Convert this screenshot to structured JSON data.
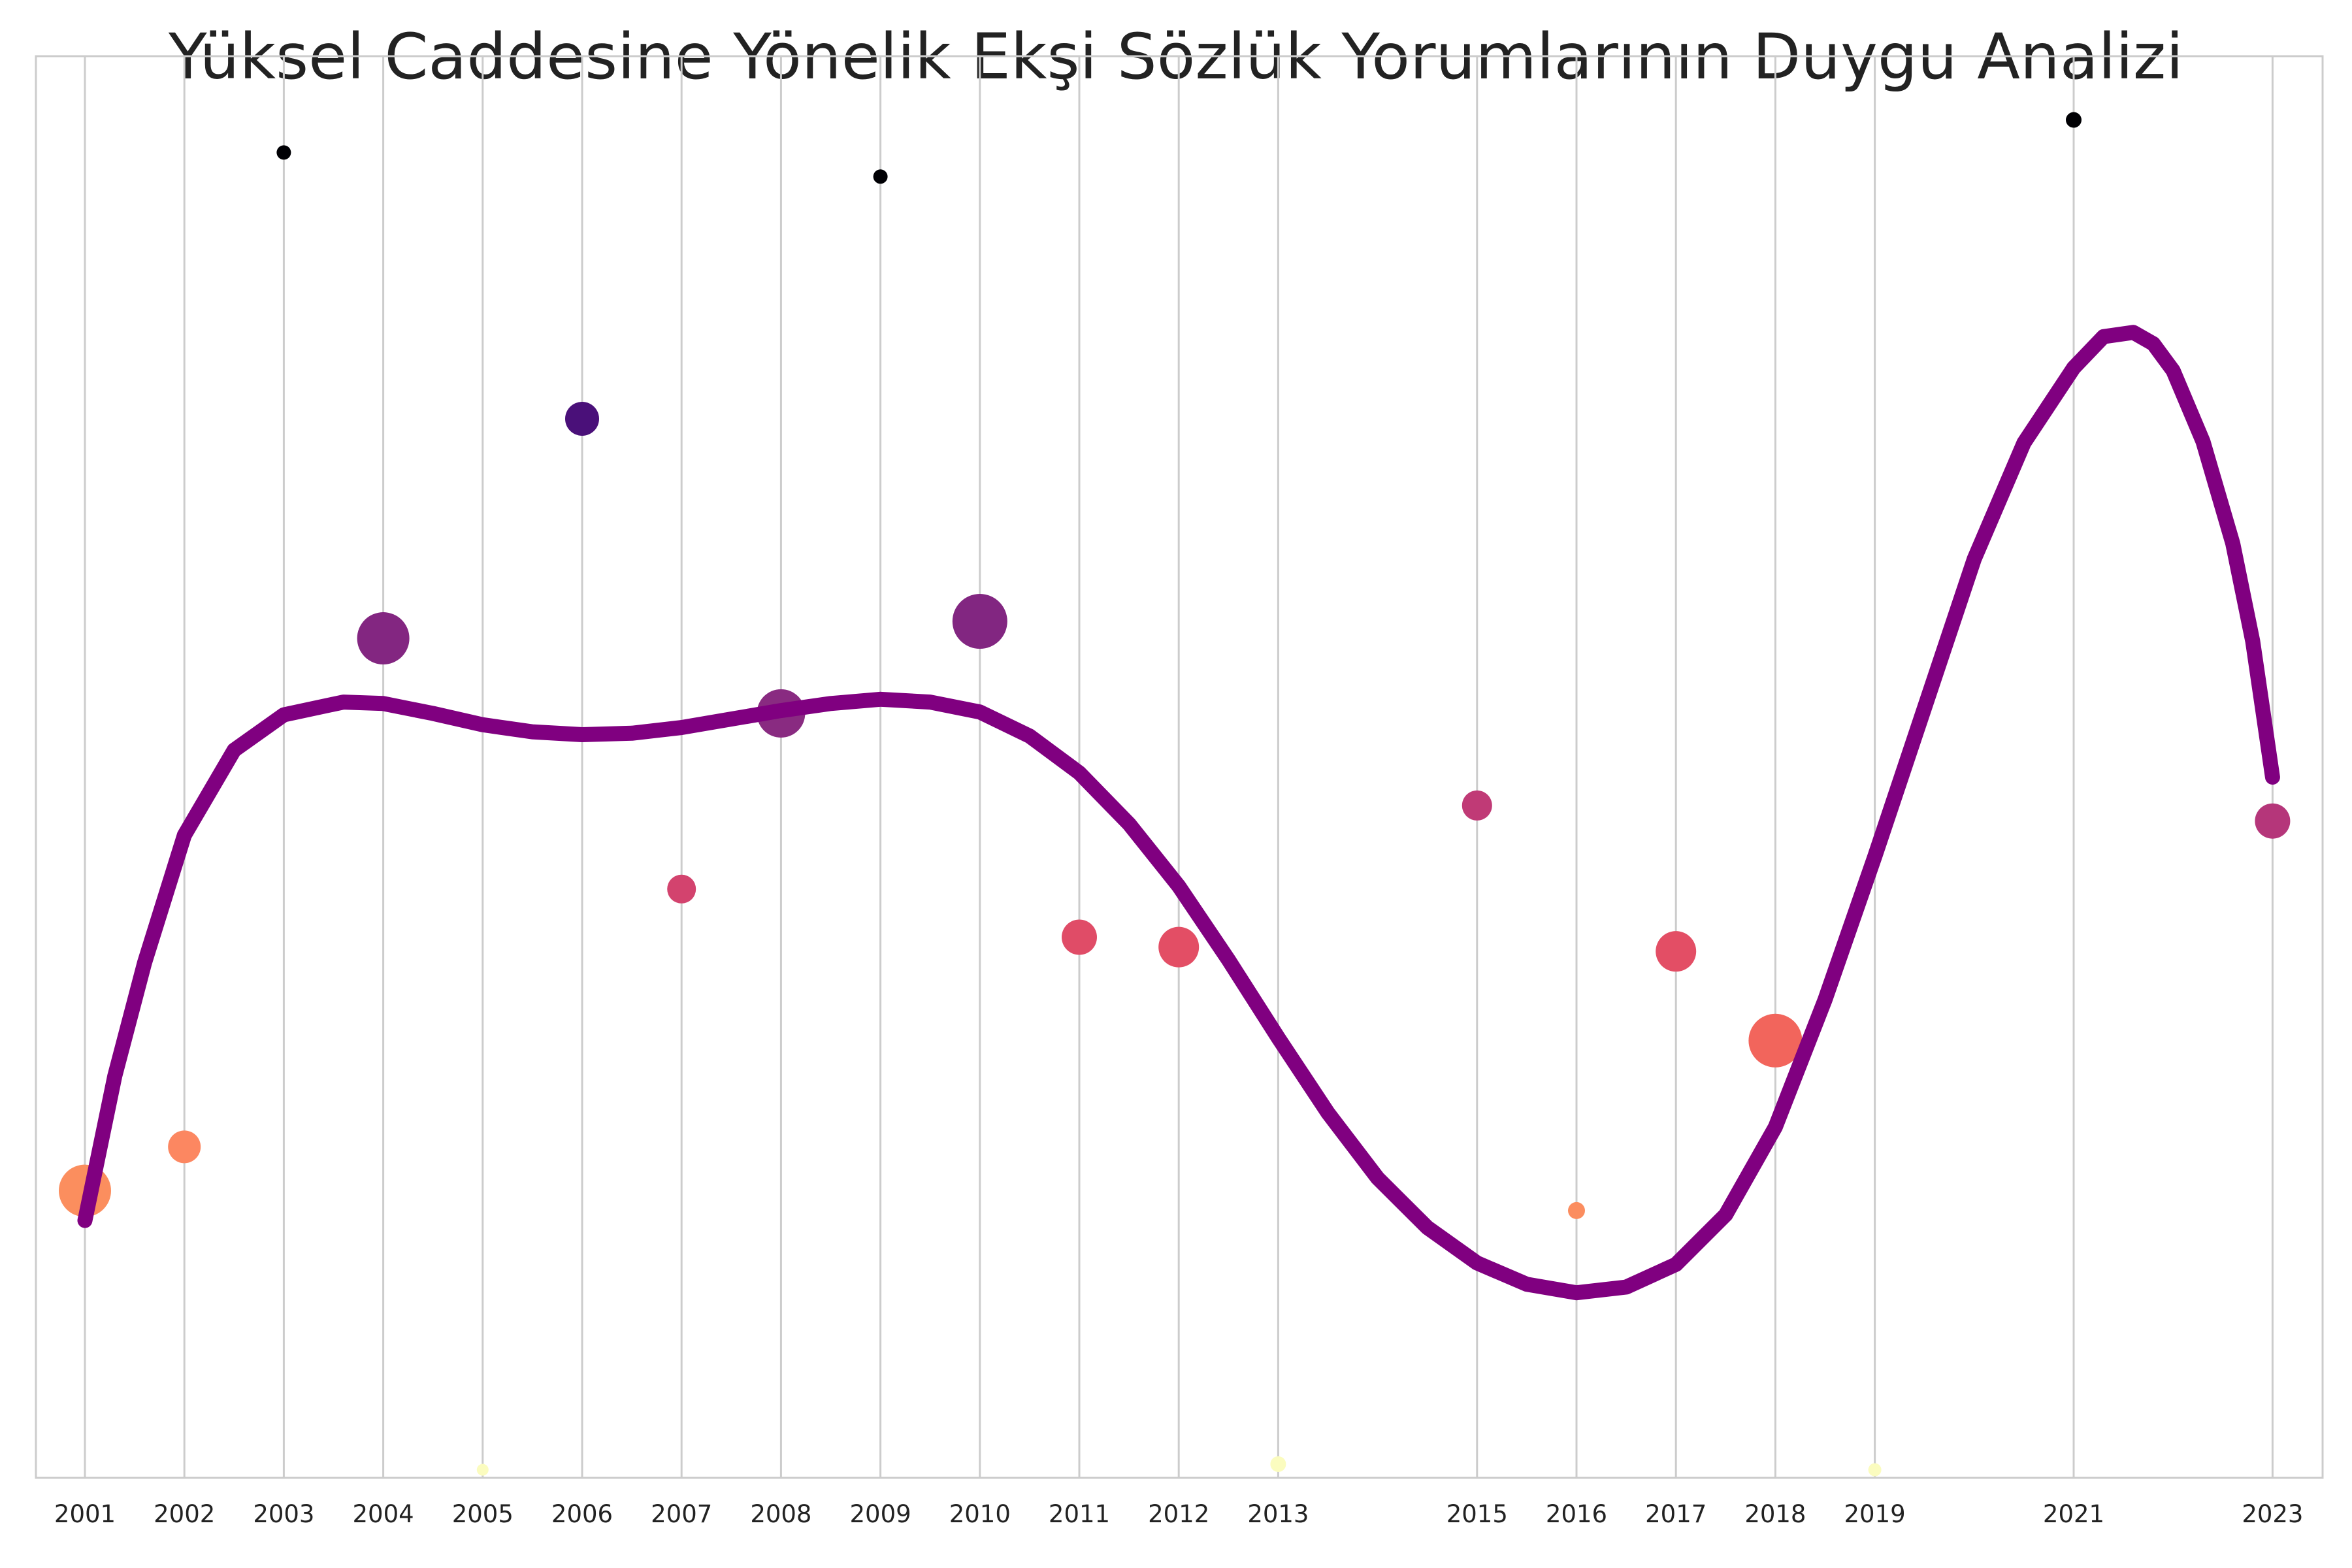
{
  "chart_data": {
    "type": "scatter",
    "title": "Yüksel Caddesine Yönelik Ekşi Sözlük Yorumlarının Duygu Analizi",
    "xlabel": "",
    "ylabel": "",
    "x_tick_labels": [
      "2001",
      "2002",
      "2003",
      "2004",
      "2005",
      "2006",
      "2007",
      "2008",
      "2009",
      "2010",
      "2011",
      "2012",
      "2013",
      "2015",
      "2016",
      "2017",
      "2018",
      "2019",
      "2021",
      "2023"
    ],
    "ylim": [
      0,
      100
    ],
    "grid": {
      "x": true,
      "y": false
    },
    "points": [
      {
        "year": 2001,
        "sentiment": 19.9,
        "size": 40,
        "color": "#fb8e5e"
      },
      {
        "year": 2002,
        "sentiment": 23.0,
        "size": 25,
        "color": "#fc8761"
      },
      {
        "year": 2003,
        "sentiment": 93.2,
        "size": 11,
        "color": "#000004"
      },
      {
        "year": 2004,
        "sentiment": 58.9,
        "size": 40,
        "color": "#832681"
      },
      {
        "year": 2005,
        "sentiment": 0.2,
        "size": 9,
        "color": "#fbfcbf"
      },
      {
        "year": 2006,
        "sentiment": 74.4,
        "size": 26,
        "color": "#4a1079"
      },
      {
        "year": 2007,
        "sentiment": 41.2,
        "size": 22,
        "color": "#d3436e"
      },
      {
        "year": 2008,
        "sentiment": 53.6,
        "size": 37,
        "color": "#892b81"
      },
      {
        "year": 2009,
        "sentiment": 91.5,
        "size": 11,
        "color": "#000004"
      },
      {
        "year": 2010,
        "sentiment": 60.1,
        "size": 42,
        "color": "#822681"
      },
      {
        "year": 2011,
        "sentiment": 37.8,
        "size": 27,
        "color": "#e04c67"
      },
      {
        "year": 2012,
        "sentiment": 37.1,
        "size": 31,
        "color": "#e34e65"
      },
      {
        "year": 2013,
        "sentiment": 0.6,
        "size": 12,
        "color": "#fbfcbf"
      },
      {
        "year": 2015,
        "sentiment": 47.1,
        "size": 23,
        "color": "#c03a76"
      },
      {
        "year": 2016,
        "sentiment": 18.5,
        "size": 13,
        "color": "#fb8d5f"
      },
      {
        "year": 2017,
        "sentiment": 36.8,
        "size": 31,
        "color": "#e34e65"
      },
      {
        "year": 2018,
        "sentiment": 30.5,
        "size": 41,
        "color": "#f2655c"
      },
      {
        "year": 2019,
        "sentiment": 0.2,
        "size": 10,
        "color": "#fbfcbf"
      },
      {
        "year": 2021,
        "sentiment": 95.5,
        "size": 12,
        "color": "#000004"
      },
      {
        "year": 2023,
        "sentiment": 46.0,
        "size": 27,
        "color": "#b5367a"
      }
    ],
    "trend": {
      "color": "#800080",
      "points": [
        [
          2001,
          17.8
        ],
        [
          2001.3,
          28.0
        ],
        [
          2001.6,
          36.0
        ],
        [
          2002,
          45.0
        ],
        [
          2002.5,
          51.0
        ],
        [
          2003,
          53.5
        ],
        [
          2003.6,
          54.4
        ],
        [
          2004,
          54.3
        ],
        [
          2004.5,
          53.6
        ],
        [
          2005,
          52.8
        ],
        [
          2005.5,
          52.3
        ],
        [
          2006,
          52.1
        ],
        [
          2006.5,
          52.2
        ],
        [
          2007,
          52.6
        ],
        [
          2007.5,
          53.2
        ],
        [
          2008,
          53.8
        ],
        [
          2008.5,
          54.3
        ],
        [
          2009,
          54.6
        ],
        [
          2009.5,
          54.4
        ],
        [
          2010,
          53.7
        ],
        [
          2010.5,
          52.0
        ],
        [
          2011,
          49.4
        ],
        [
          2011.5,
          45.8
        ],
        [
          2012,
          41.4
        ],
        [
          2012.5,
          36.2
        ],
        [
          2013,
          30.7
        ],
        [
          2013.5,
          25.4
        ],
        [
          2014,
          20.8
        ],
        [
          2014.5,
          17.3
        ],
        [
          2015,
          14.8
        ],
        [
          2015.5,
          13.3
        ],
        [
          2016,
          12.7
        ],
        [
          2016.5,
          13.1
        ],
        [
          2017,
          14.7
        ],
        [
          2017.5,
          18.2
        ],
        [
          2018,
          24.4
        ],
        [
          2018.5,
          33.4
        ],
        [
          2019,
          43.5
        ],
        [
          2019.5,
          54.0
        ],
        [
          2020,
          64.5
        ],
        [
          2020.5,
          72.7
        ],
        [
          2021,
          78.0
        ],
        [
          2021.3,
          80.2
        ],
        [
          2021.6,
          80.5
        ],
        [
          2021.8,
          79.7
        ],
        [
          2022,
          77.8
        ],
        [
          2022.3,
          72.8
        ],
        [
          2022.6,
          65.6
        ],
        [
          2022.8,
          58.7
        ],
        [
          2023,
          49.1
        ]
      ]
    }
  }
}
